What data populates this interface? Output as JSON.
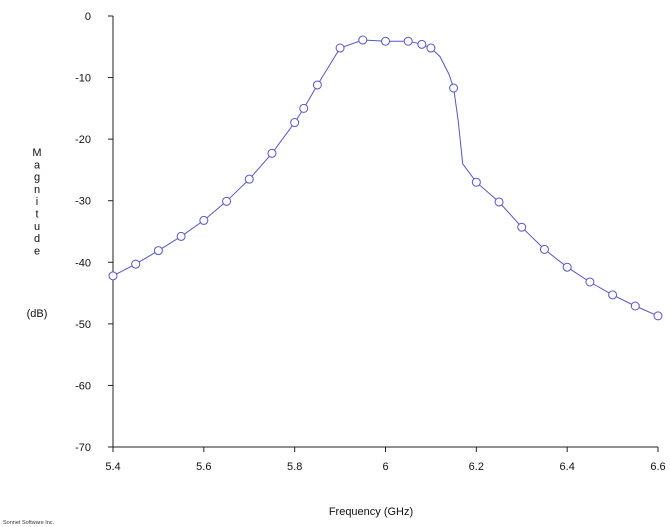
{
  "chart_data": {
    "type": "line",
    "xlabel": "Frequency (GHz)",
    "ylabel_letters": [
      "M",
      "a",
      "g",
      "n",
      "i",
      "t",
      "u",
      "d",
      "e"
    ],
    "ylabel_unit": "(dB)",
    "xlim": [
      5.4,
      6.6
    ],
    "ylim": [
      -70,
      0
    ],
    "x_ticks": [
      "5.4",
      "5.6",
      "5.8",
      "6",
      "6.2",
      "6.4",
      "6.6"
    ],
    "y_ticks": [
      "0",
      "-10",
      "-20",
      "-30",
      "-40",
      "-50",
      "-60",
      "-70"
    ],
    "grid": false,
    "line_color": "#5555cc",
    "series": [
      {
        "line": [
          [
            5.4,
            -42.2
          ],
          [
            5.45,
            -40.3
          ],
          [
            5.5,
            -38.1
          ],
          [
            5.55,
            -35.8
          ],
          [
            5.6,
            -33.2
          ],
          [
            5.65,
            -30.1
          ],
          [
            5.7,
            -26.5
          ],
          [
            5.75,
            -22.3
          ],
          [
            5.8,
            -17.3
          ],
          [
            5.82,
            -15.0
          ],
          [
            5.85,
            -11.2
          ],
          [
            5.9,
            -5.2
          ],
          [
            5.95,
            -3.9
          ],
          [
            6.0,
            -4.1
          ],
          [
            6.05,
            -4.1
          ],
          [
            6.08,
            -4.6
          ],
          [
            6.1,
            -5.2
          ],
          [
            6.12,
            -6.6
          ],
          [
            6.14,
            -9.5
          ],
          [
            6.15,
            -11.7
          ],
          [
            6.16,
            -17.0
          ],
          [
            6.17,
            -24.0
          ],
          [
            6.2,
            -27.0
          ],
          [
            6.25,
            -30.2
          ],
          [
            6.3,
            -34.3
          ],
          [
            6.35,
            -37.9
          ],
          [
            6.4,
            -40.8
          ],
          [
            6.45,
            -43.2
          ],
          [
            6.5,
            -45.3
          ],
          [
            6.55,
            -47.1
          ],
          [
            6.6,
            -48.7
          ]
        ],
        "markers": [
          [
            5.4,
            -42.2
          ],
          [
            5.45,
            -40.3
          ],
          [
            5.5,
            -38.1
          ],
          [
            5.55,
            -35.8
          ],
          [
            5.6,
            -33.2
          ],
          [
            5.65,
            -30.1
          ],
          [
            5.7,
            -26.5
          ],
          [
            5.75,
            -22.3
          ],
          [
            5.8,
            -17.3
          ],
          [
            5.82,
            -15.0
          ],
          [
            5.85,
            -11.2
          ],
          [
            5.9,
            -5.2
          ],
          [
            5.95,
            -3.9
          ],
          [
            6.0,
            -4.1
          ],
          [
            6.05,
            -4.1
          ],
          [
            6.08,
            -4.6
          ],
          [
            6.1,
            -5.2
          ],
          [
            6.15,
            -11.7
          ],
          [
            6.2,
            -27.0
          ],
          [
            6.25,
            -30.2
          ],
          [
            6.3,
            -34.3
          ],
          [
            6.35,
            -37.9
          ],
          [
            6.4,
            -40.8
          ],
          [
            6.45,
            -43.2
          ],
          [
            6.5,
            -45.3
          ],
          [
            6.55,
            -47.1
          ],
          [
            6.6,
            -48.7
          ]
        ]
      }
    ]
  },
  "footer": {
    "credit": "Sonnet Software Inc."
  }
}
